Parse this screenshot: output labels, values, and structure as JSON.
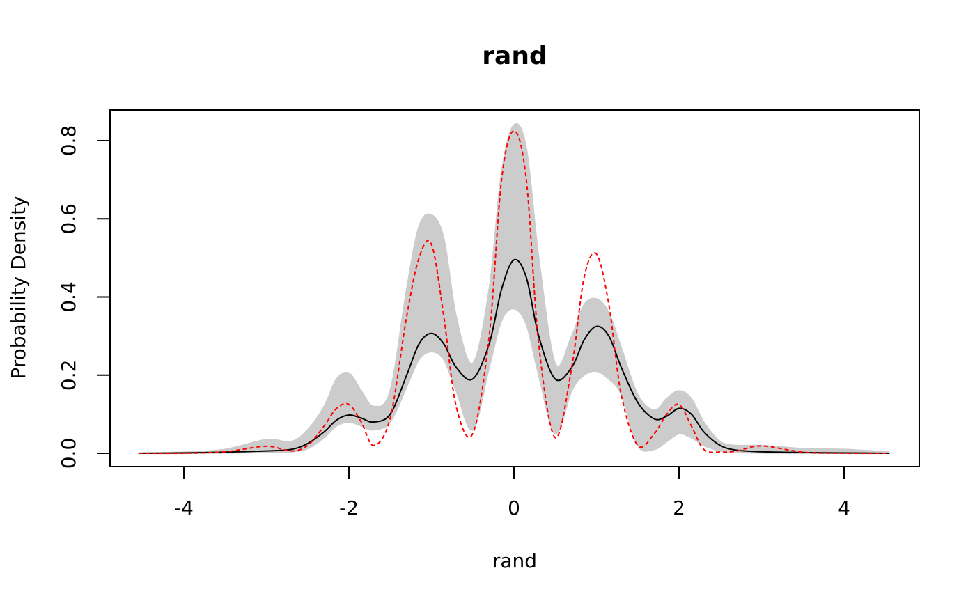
{
  "chart_data": {
    "type": "line",
    "title": "rand",
    "xlabel": "rand",
    "ylabel": "Probability Density",
    "xlim": [
      -4.55,
      4.55
    ],
    "ylim": [
      0.0,
      0.85
    ],
    "x_ticks": [
      "-4",
      "-2",
      "0",
      "2",
      "4"
    ],
    "y_ticks": [
      "0.0",
      "0.2",
      "0.4",
      "0.6",
      "0.8"
    ],
    "grid": false,
    "legend": "none",
    "x_grid": [
      -4.55,
      -4.0,
      -3.5,
      -3.0,
      -2.7,
      -2.5,
      -2.3,
      -2.15,
      -2.0,
      -1.85,
      -1.7,
      -1.5,
      -1.3,
      -1.15,
      -1.0,
      -0.85,
      -0.7,
      -0.5,
      -0.3,
      -0.15,
      0.0,
      0.15,
      0.3,
      0.5,
      0.7,
      0.85,
      1.0,
      1.15,
      1.3,
      1.5,
      1.7,
      1.85,
      2.0,
      2.15,
      2.3,
      2.5,
      2.7,
      3.0,
      3.5,
      4.0,
      4.55
    ],
    "series": [
      {
        "style": "solid",
        "color": "#000000",
        "values": [
          0.0,
          0.001,
          0.003,
          0.006,
          0.01,
          0.025,
          0.055,
          0.085,
          0.098,
          0.09,
          0.08,
          0.1,
          0.2,
          0.28,
          0.307,
          0.28,
          0.22,
          0.19,
          0.28,
          0.42,
          0.495,
          0.45,
          0.3,
          0.19,
          0.22,
          0.29,
          0.325,
          0.3,
          0.22,
          0.13,
          0.088,
          0.095,
          0.115,
          0.1,
          0.055,
          0.02,
          0.008,
          0.004,
          0.002,
          0.001,
          0.0
        ]
      },
      {
        "style": "dashed",
        "color": "#ff0000",
        "values": [
          0.0,
          0.0,
          0.004,
          0.018,
          0.006,
          0.02,
          0.07,
          0.115,
          0.125,
          0.08,
          0.02,
          0.09,
          0.35,
          0.5,
          0.535,
          0.35,
          0.12,
          0.05,
          0.3,
          0.7,
          0.825,
          0.7,
          0.28,
          0.04,
          0.22,
          0.45,
          0.51,
          0.38,
          0.15,
          0.02,
          0.05,
          0.1,
          0.125,
          0.07,
          0.01,
          0.003,
          0.006,
          0.019,
          0.003,
          0.0,
          0.0
        ]
      }
    ],
    "envelope": {
      "color": "#cccccc",
      "lower": [
        0.0,
        0.0,
        0.001,
        0.002,
        0.004,
        0.012,
        0.04,
        0.07,
        0.08,
        0.07,
        0.06,
        0.08,
        0.17,
        0.24,
        0.26,
        0.24,
        0.16,
        0.06,
        0.22,
        0.34,
        0.37,
        0.33,
        0.2,
        0.05,
        0.16,
        0.2,
        0.21,
        0.19,
        0.15,
        0.02,
        0.01,
        0.03,
        0.05,
        0.04,
        0.02,
        0.006,
        0.002,
        0.001,
        0.0,
        0.0,
        0.0
      ],
      "upper": [
        0.001,
        0.003,
        0.01,
        0.035,
        0.03,
        0.06,
        0.12,
        0.19,
        0.205,
        0.16,
        0.12,
        0.16,
        0.42,
        0.58,
        0.61,
        0.55,
        0.35,
        0.23,
        0.42,
        0.72,
        0.84,
        0.78,
        0.5,
        0.23,
        0.3,
        0.38,
        0.395,
        0.36,
        0.27,
        0.15,
        0.11,
        0.14,
        0.16,
        0.14,
        0.08,
        0.03,
        0.02,
        0.02,
        0.012,
        0.01,
        0.003
      ]
    }
  }
}
